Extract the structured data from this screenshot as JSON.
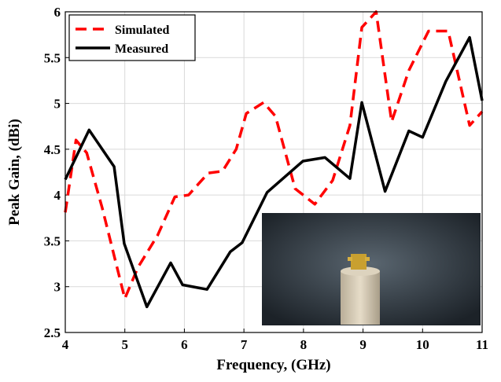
{
  "chart_data": {
    "type": "line",
    "xlabel": "Frequency, (GHz)",
    "ylabel": "Peak Gain, (dBi)",
    "xlim": [
      4,
      11
    ],
    "xticks": [
      4,
      5,
      6,
      7,
      8,
      9,
      10,
      11
    ],
    "ylim": [
      2.5,
      6
    ],
    "yticks": [
      2.5,
      3,
      3.5,
      4,
      4.5,
      5,
      5.5,
      6
    ],
    "grid": true,
    "legend": "upper left",
    "series": [
      {
        "name": "Simulated",
        "color": "#ff0000",
        "linestyle": "dashed",
        "x": [
          4,
          4.18,
          4.36,
          4.62,
          5.0,
          5.22,
          5.55,
          5.84,
          6.07,
          6.4,
          6.64,
          6.87,
          7.04,
          7.33,
          7.53,
          7.86,
          8.19,
          8.49,
          8.78,
          8.98,
          9.22,
          9.48,
          9.77,
          10.1,
          10.43,
          10.79,
          11
        ],
        "values": [
          3.81,
          4.6,
          4.46,
          3.86,
          2.87,
          3.21,
          3.56,
          3.98,
          4.0,
          4.24,
          4.26,
          4.5,
          4.89,
          5.01,
          4.86,
          4.07,
          3.9,
          4.16,
          4.76,
          5.83,
          6.0,
          4.8,
          5.36,
          5.79,
          5.79,
          4.76,
          4.91
        ]
      },
      {
        "name": "Measured",
        "color": "#000000",
        "linestyle": "solid",
        "x": [
          4,
          4.4,
          4.82,
          4.99,
          5.37,
          5.77,
          5.97,
          6.38,
          6.77,
          6.97,
          7.39,
          7.99,
          8.36,
          8.78,
          8.98,
          9.37,
          9.77,
          10.0,
          10.39,
          10.79,
          11
        ],
        "values": [
          4.17,
          4.71,
          4.31,
          3.47,
          2.78,
          3.26,
          3.02,
          2.97,
          3.38,
          3.48,
          4.03,
          4.37,
          4.41,
          4.18,
          5.01,
          4.04,
          4.7,
          4.63,
          5.24,
          5.72,
          5.03
        ]
      }
    ]
  }
}
